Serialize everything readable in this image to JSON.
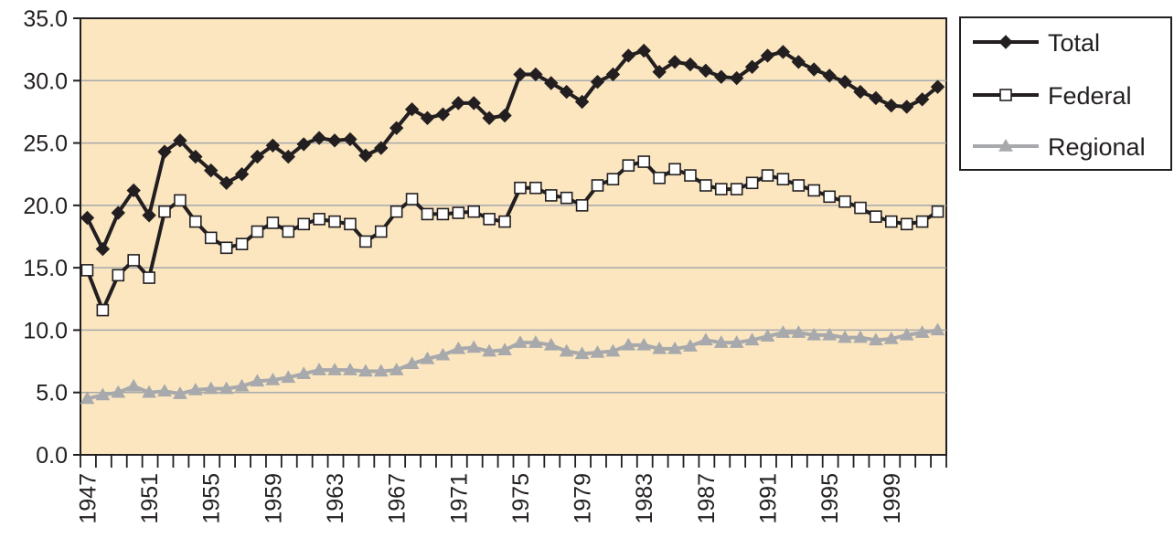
{
  "chart_data": {
    "type": "line",
    "title": "",
    "xlabel": "",
    "ylabel": "",
    "ylim": [
      0,
      35
    ],
    "yticks": [
      "0.0",
      "5.0",
      "10.0",
      "15.0",
      "20.0",
      "25.0",
      "30.0",
      "35.0"
    ],
    "xticks": [
      "1947",
      "1951",
      "1955",
      "1959",
      "1963",
      "1967",
      "1971",
      "1975",
      "1979",
      "1983",
      "1987",
      "1991",
      "1995",
      "1999"
    ],
    "x": [
      1947,
      1948,
      1949,
      1950,
      1951,
      1952,
      1953,
      1954,
      1955,
      1956,
      1957,
      1958,
      1959,
      1960,
      1961,
      1962,
      1963,
      1964,
      1965,
      1966,
      1967,
      1968,
      1969,
      1970,
      1971,
      1972,
      1973,
      1974,
      1975,
      1976,
      1977,
      1978,
      1979,
      1980,
      1981,
      1982,
      1983,
      1984,
      1985,
      1986,
      1987,
      1988,
      1989,
      1990,
      1991,
      1992,
      1993,
      1994,
      1995,
      1996,
      1997,
      1998,
      1999,
      2000,
      2001,
      2002
    ],
    "grid": true,
    "legend_position": "right",
    "background": "#fbe6c0",
    "series": [
      {
        "name": "Total",
        "marker": "diamond",
        "color": "#231f20",
        "values": [
          19.0,
          16.5,
          19.4,
          21.2,
          19.2,
          24.3,
          25.2,
          23.9,
          22.8,
          21.8,
          22.5,
          23.9,
          24.8,
          23.9,
          24.9,
          25.4,
          25.2,
          25.3,
          24.0,
          24.6,
          26.2,
          27.7,
          27.0,
          27.3,
          28.2,
          28.2,
          27.0,
          27.2,
          30.5,
          30.5,
          29.8,
          29.1,
          28.3,
          29.9,
          30.5,
          32.0,
          32.4,
          30.7,
          31.5,
          31.3,
          30.8,
          30.3,
          30.2,
          31.1,
          32.0,
          32.3,
          31.5,
          30.9,
          30.4,
          29.9,
          29.1,
          28.6,
          28.0,
          27.9,
          28.5,
          29.5
        ]
      },
      {
        "name": "Federal",
        "marker": "square-open",
        "color": "#231f20",
        "values": [
          14.8,
          11.6,
          14.4,
          15.6,
          14.2,
          19.5,
          20.4,
          18.7,
          17.4,
          16.6,
          16.9,
          17.9,
          18.6,
          17.9,
          18.5,
          18.9,
          18.7,
          18.5,
          17.1,
          17.9,
          19.5,
          20.5,
          19.3,
          19.3,
          19.4,
          19.5,
          18.9,
          18.7,
          21.4,
          21.4,
          20.8,
          20.6,
          20.0,
          21.6,
          22.1,
          23.2,
          23.5,
          22.2,
          22.9,
          22.4,
          21.6,
          21.3,
          21.3,
          21.8,
          22.4,
          22.1,
          21.6,
          21.2,
          20.7,
          20.3,
          19.8,
          19.1,
          18.7,
          18.5,
          18.7,
          19.5
        ]
      },
      {
        "name": "Regional",
        "marker": "triangle",
        "color": "#a7a9ac",
        "values": [
          4.5,
          4.8,
          5.0,
          5.5,
          5.0,
          5.1,
          4.9,
          5.2,
          5.3,
          5.3,
          5.5,
          5.9,
          6.0,
          6.2,
          6.5,
          6.8,
          6.8,
          6.8,
          6.7,
          6.7,
          6.8,
          7.3,
          7.7,
          8.0,
          8.5,
          8.6,
          8.3,
          8.4,
          9.0,
          9.0,
          8.8,
          8.3,
          8.1,
          8.2,
          8.3,
          8.8,
          8.8,
          8.5,
          8.5,
          8.7,
          9.2,
          9.0,
          9.0,
          9.2,
          9.5,
          9.8,
          9.8,
          9.6,
          9.6,
          9.4,
          9.4,
          9.2,
          9.3,
          9.6,
          9.8,
          10.0
        ]
      }
    ]
  }
}
